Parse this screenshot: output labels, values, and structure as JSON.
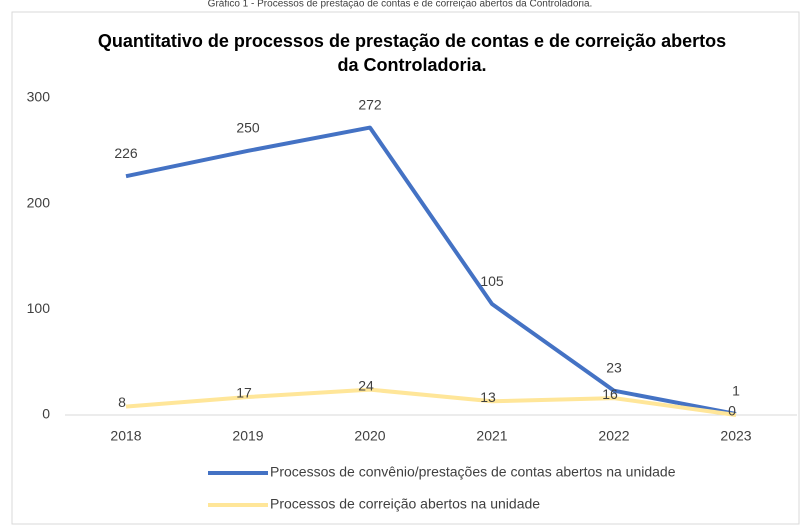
{
  "caption": "Gráfico 1 - Processos de prestação de contas e de correição abertos da Controladoria.",
  "chart_data": {
    "type": "line",
    "title": [
      "Quantitativo de processos de prestação de contas e de correição abertos",
      "da Controladoria."
    ],
    "categories": [
      "2018",
      "2019",
      "2020",
      "2021",
      "2022",
      "2023"
    ],
    "series": [
      {
        "name": "Processos de convênio/prestações de contas abertos na unidade",
        "color": "#4472c4",
        "values": [
          226,
          250,
          272,
          105,
          23,
          1
        ]
      },
      {
        "name": "Processos de correição abertos na unidade",
        "color": "#ffe699",
        "values": [
          8,
          17,
          24,
          13,
          16,
          0
        ]
      }
    ],
    "ylim": [
      0,
      300
    ],
    "yticks": [
      0,
      100,
      200,
      300
    ],
    "grid": false,
    "legend": "bottom"
  }
}
